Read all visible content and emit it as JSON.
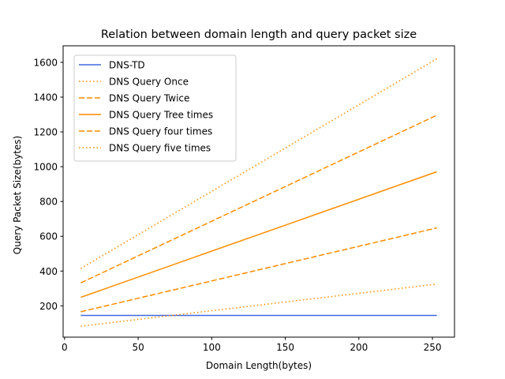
{
  "chart_data": {
    "type": "line",
    "title": "Relation between domain length and query packet size",
    "xlabel": "Domain Length(bytes)",
    "ylabel": "Query Packet Size(bytes)",
    "xlim": [
      -1,
      265
    ],
    "ylim": [
      20,
      1695
    ],
    "xticks": [
      0,
      50,
      100,
      150,
      200,
      250
    ],
    "yticks": [
      200,
      400,
      600,
      800,
      1000,
      1200,
      1400,
      1600
    ],
    "grid": false,
    "legend_position": "top-left",
    "series": [
      {
        "name": "DNS-TD",
        "x": [
          11,
          253
        ],
        "y": [
          145,
          145
        ],
        "color": "#4169e1",
        "style": "solid"
      },
      {
        "name": "DNS Query Once",
        "x": [
          11,
          253
        ],
        "y": [
          83,
          325
        ],
        "color": "#ff8c00",
        "style": "dotted"
      },
      {
        "name": "DNS Query Twice",
        "x": [
          11,
          253
        ],
        "y": [
          166,
          648
        ],
        "color": "#ff8c00",
        "style": "dashed"
      },
      {
        "name": "DNS Query Tree times",
        "x": [
          11,
          253
        ],
        "y": [
          249,
          971
        ],
        "color": "#ff8c00",
        "style": "solid"
      },
      {
        "name": "DNS Query four times",
        "x": [
          11,
          253
        ],
        "y": [
          332,
          1296
        ],
        "color": "#ff8c00",
        "style": "dashed"
      },
      {
        "name": "DNS Query five times",
        "x": [
          11,
          253
        ],
        "y": [
          415,
          1620
        ],
        "color": "#ff8c00",
        "style": "dotted"
      }
    ]
  }
}
